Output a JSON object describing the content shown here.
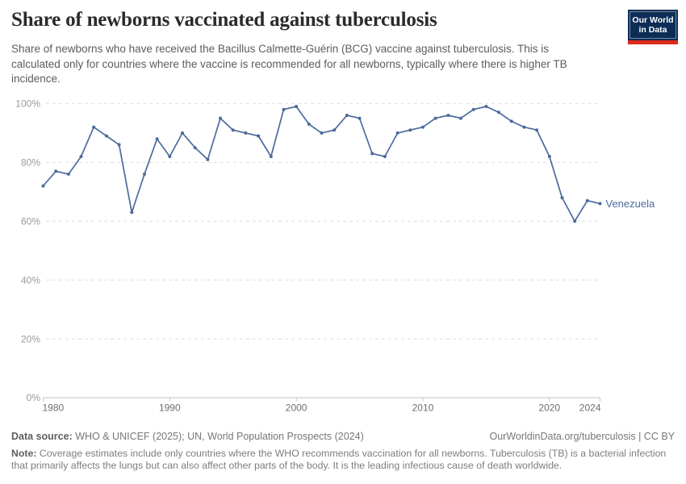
{
  "header": {
    "title": "Share of newborns vaccinated against tuberculosis",
    "subtitle": "Share of newborns who have received the Bacillus Calmette-Guérin (BCG) vaccine against tuberculosis. This is calculated only for countries where the vaccine is recommended for all newborns, typically where there is higher TB incidence.",
    "logo": {
      "line1": "Our World",
      "line2": "in Data",
      "bg_color": "#0d2d56",
      "bar_color": "#dd2a1c"
    }
  },
  "chart_data": {
    "type": "line",
    "title": "Share of newborns vaccinated against tuberculosis",
    "xlabel": "",
    "ylabel": "",
    "xlim": [
      1980,
      2024
    ],
    "ylim": [
      0,
      100
    ],
    "grid": "horizontal-dashed",
    "legend_position": "end-of-line",
    "x_ticks": [
      1980,
      1990,
      2000,
      2010,
      2020,
      2024
    ],
    "y_ticks": [
      0,
      20,
      40,
      60,
      80,
      100
    ],
    "y_tick_suffix": "%",
    "series": [
      {
        "name": "Venezuela",
        "color": "#4C6A9C",
        "x": [
          1980,
          1981,
          1982,
          1983,
          1984,
          1985,
          1986,
          1987,
          1988,
          1989,
          1990,
          1991,
          1992,
          1993,
          1994,
          1995,
          1996,
          1997,
          1998,
          1999,
          2000,
          2001,
          2002,
          2003,
          2004,
          2005,
          2006,
          2007,
          2008,
          2009,
          2010,
          2011,
          2012,
          2013,
          2014,
          2015,
          2016,
          2017,
          2018,
          2019,
          2020,
          2021,
          2022,
          2023,
          2024
        ],
        "values": [
          72,
          77,
          76,
          82,
          92,
          89,
          86,
          63,
          76,
          88,
          82,
          90,
          85,
          81,
          95,
          91,
          90,
          89,
          82,
          98,
          99,
          93,
          90,
          91,
          96,
          95,
          83,
          82,
          90,
          91,
          92,
          95,
          96,
          95,
          98,
          99,
          97,
          94,
          92,
          91,
          82,
          68,
          60,
          67,
          66
        ]
      }
    ]
  },
  "footer": {
    "datasource_label": "Data source:",
    "datasource_text": " WHO & UNICEF (2025); UN, World Population Prospects (2024)",
    "attribution": "OurWorldinData.org/tuberculosis | CC BY",
    "note_label": "Note:",
    "note_text": " Coverage estimates include only countries where the WHO recommends vaccination for all newborns. Tuberculosis (TB) is a bacterial infection that primarily affects the lungs but can also affect other parts of the body. It is the leading infectious cause of death worldwide."
  }
}
